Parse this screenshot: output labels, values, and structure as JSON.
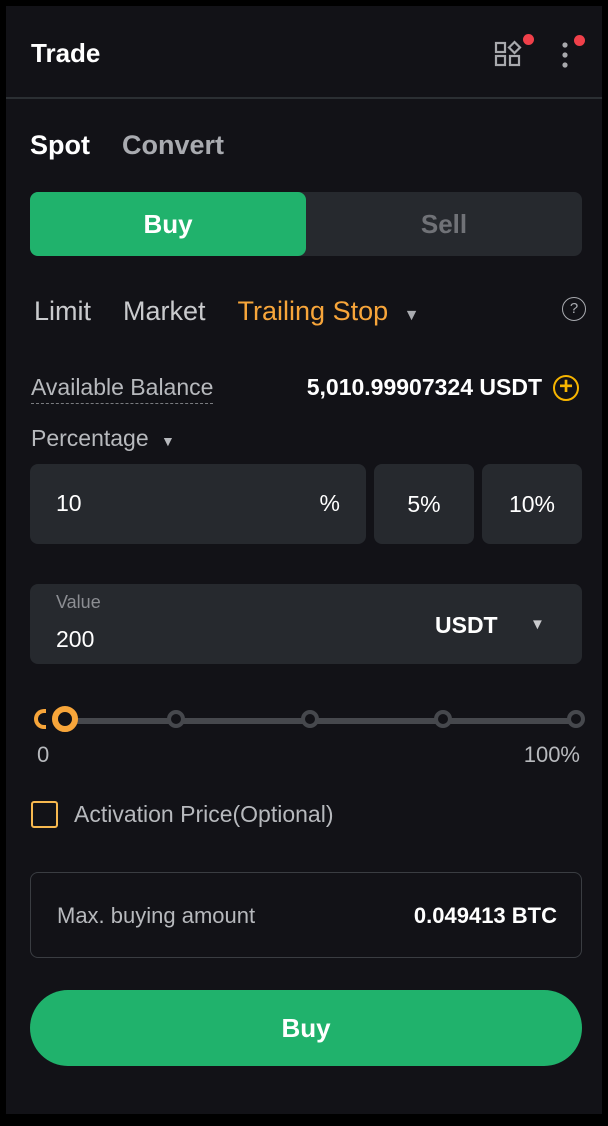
{
  "header": {
    "title": "Trade",
    "icons": [
      "widgets-icon",
      "more-vertical-icon"
    ],
    "badge_color": "#f0404a"
  },
  "tabs": [
    {
      "label": "Spot",
      "active": true
    },
    {
      "label": "Convert",
      "active": false
    }
  ],
  "side": {
    "buy": "Buy",
    "sell": "Sell",
    "active": "Buy",
    "buy_color": "#20b26c"
  },
  "order_types": [
    {
      "label": "Limit"
    },
    {
      "label": "Market"
    },
    {
      "label": "Trailing Stop",
      "active": true
    }
  ],
  "accent": "#f7a53a",
  "balance": {
    "label": "Available Balance",
    "value": "5,010.99907324 USDT"
  },
  "percentage": {
    "label": "Percentage",
    "value": "10",
    "unit": "%",
    "presets": [
      "5%",
      "10%"
    ]
  },
  "value": {
    "label": "Value",
    "amount": "200",
    "currency": "USDT"
  },
  "slider": {
    "min_label": "0",
    "max_label": "100%",
    "level_percent": 0
  },
  "activation": {
    "label": "Activation Price(Optional)",
    "checked": false
  },
  "max_buy": {
    "label": "Max. buying amount",
    "value": "0.049413 BTC"
  },
  "submit": {
    "label": "Buy"
  }
}
